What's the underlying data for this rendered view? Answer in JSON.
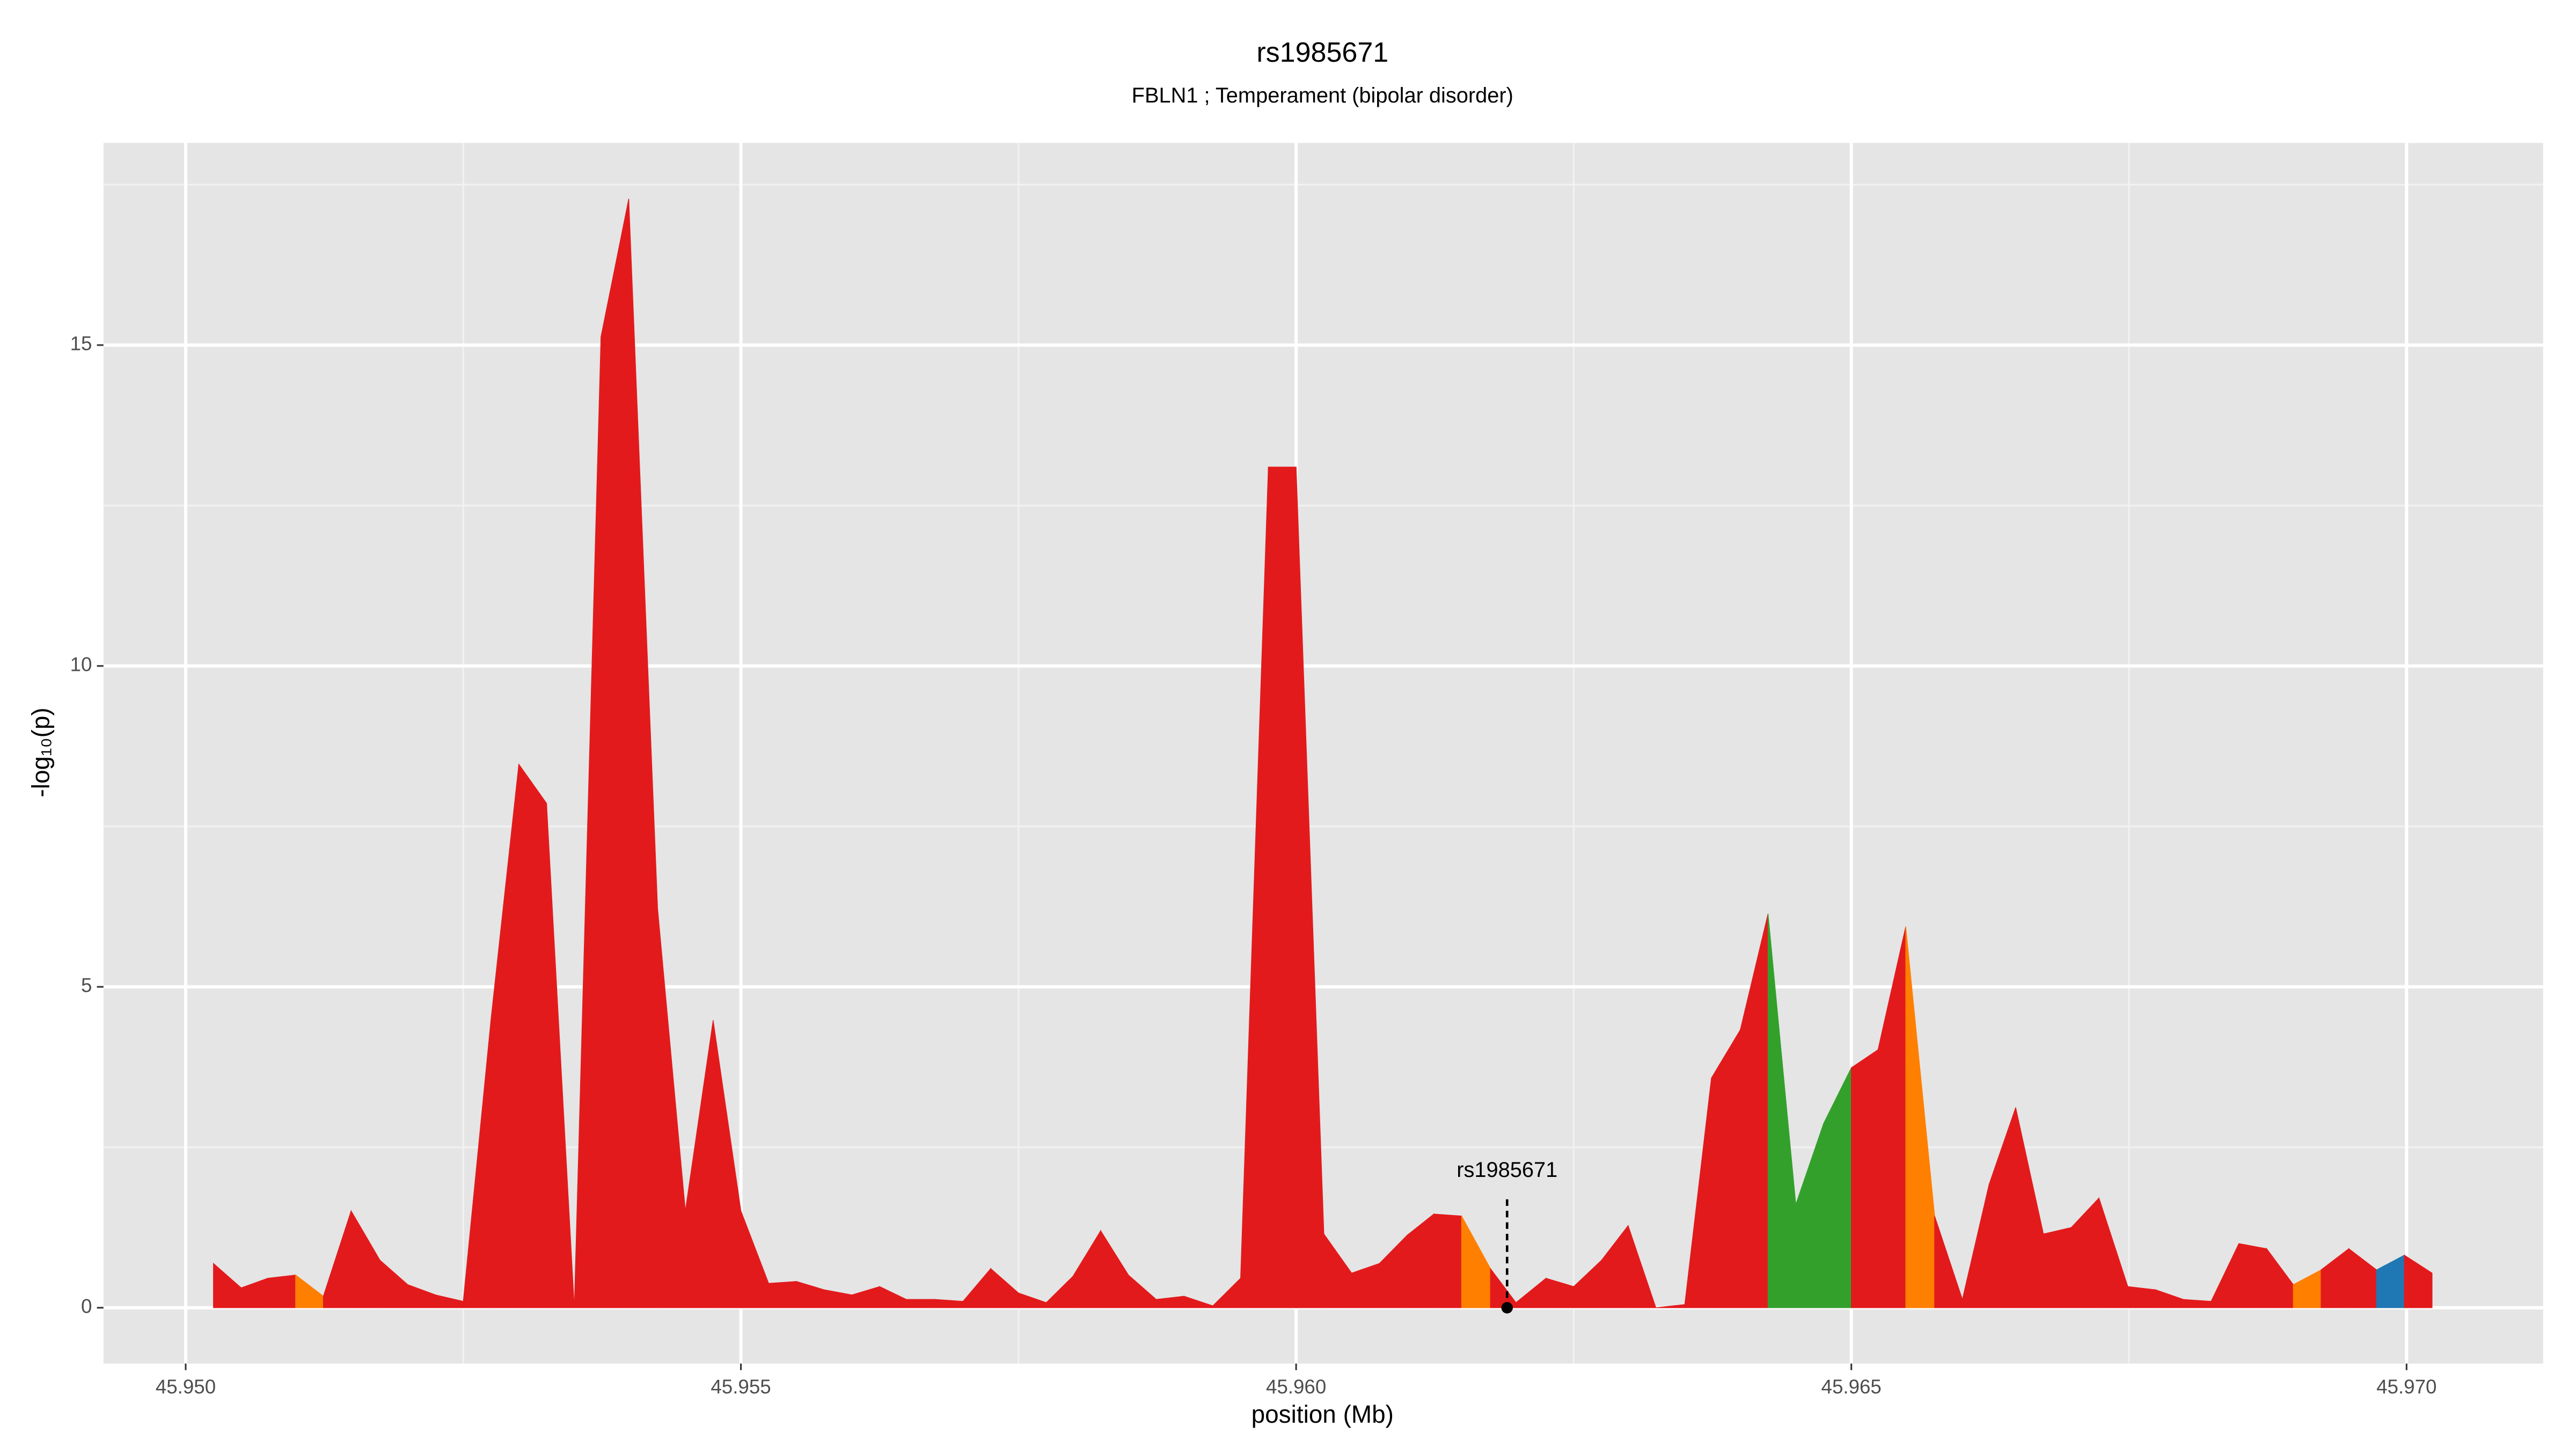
{
  "chart_data": {
    "type": "area",
    "title": "rs1985671",
    "subtitle": "FBLN1 ; Temperament (bipolar disorder)",
    "x_label": "position (Mb)",
    "y_label": "-log₁₀(p)",
    "x": [
      45.95025,
      45.9505,
      45.95074,
      45.95099,
      45.95124,
      45.95149,
      45.95175,
      45.952,
      45.95225,
      45.9525,
      45.95275,
      45.953,
      45.95325,
      45.9535,
      45.95374,
      45.95399,
      45.95425,
      45.9545,
      45.95475,
      45.955,
      45.95525,
      45.9555,
      45.95575,
      45.956,
      45.95625,
      45.95649,
      45.95675,
      45.957,
      45.95725,
      45.9575,
      45.95775,
      45.95799,
      45.95824,
      45.95849,
      45.95874,
      45.95899,
      45.95925,
      45.9595,
      45.95975,
      45.96,
      45.96025,
      45.9605,
      45.96075,
      45.961,
      45.96124,
      45.96149,
      45.96175,
      45.96198,
      45.96225,
      45.9625,
      45.96275,
      45.96299,
      45.96324,
      45.9635,
      45.96374,
      45.964,
      45.96425,
      45.9645,
      45.96475,
      45.965,
      45.96524,
      45.96549,
      45.96575,
      45.966,
      45.96624,
      45.96648,
      45.96673,
      45.96698,
      45.96723,
      45.96749,
      45.96774,
      45.96799,
      45.96824,
      45.96849,
      45.96874,
      45.96898,
      45.96923,
      45.96948,
      45.96973,
      45.96998,
      45.97023
    ],
    "values": [
      0.69,
      0.31,
      0.46,
      0.51,
      0.18,
      1.51,
      0.74,
      0.36,
      0.2,
      0.1,
      4.5,
      8.47,
      7.86,
      0,
      15.13,
      17.28,
      6.22,
      1.51,
      4.48,
      1.51,
      0.38,
      0.41,
      0.28,
      0.2,
      0.33,
      0.13,
      0.13,
      0.1,
      0.61,
      0.23,
      0.08,
      0.49,
      1.2,
      0.51,
      0.13,
      0.18,
      0.03,
      0.46,
      13.1,
      13.1,
      1.15,
      0.54,
      0.69,
      1.13,
      1.46,
      1.43,
      0.61,
      0.08,
      0.46,
      0.33,
      0.74,
      1.28,
      0,
      0.05,
      3.58,
      4.33,
      6.14,
      1.61,
      2.87,
      3.74,
      4.02,
      5.94,
      1.43,
      0.13,
      1.92,
      3.12,
      1.15,
      1.25,
      1.71,
      0.33,
      0.28,
      0.13,
      0.1,
      1.0,
      0.92,
      0.36,
      0.59,
      0.92,
      0.59,
      0.82,
      0.54
    ],
    "point_colors": [
      "#e31a1c",
      "#e31a1c",
      "#e31a1c",
      "#ff7f00",
      "#e31a1c",
      "#e31a1c",
      "#e31a1c",
      "#e31a1c",
      "#e31a1c",
      "#e31a1c",
      "#e31a1c",
      "#e31a1c",
      "#e31a1c",
      "#e31a1c",
      "#e31a1c",
      "#e31a1c",
      "#e31a1c",
      "#e31a1c",
      "#e31a1c",
      "#e31a1c",
      "#e31a1c",
      "#e31a1c",
      "#e31a1c",
      "#e31a1c",
      "#e31a1c",
      "#e31a1c",
      "#e31a1c",
      "#e31a1c",
      "#e31a1c",
      "#e31a1c",
      "#e31a1c",
      "#e31a1c",
      "#e31a1c",
      "#e31a1c",
      "#e31a1c",
      "#e31a1c",
      "#e31a1c",
      "#e31a1c",
      "#e31a1c",
      "#e31a1c",
      "#e31a1c",
      "#e31a1c",
      "#e31a1c",
      "#e31a1c",
      "#e31a1c",
      "#ff7f00",
      "#e31a1c",
      "#e31a1c",
      "#e31a1c",
      "#e31a1c",
      "#e31a1c",
      "#e31a1c",
      "#e31a1c",
      "#e31a1c",
      "#e31a1c",
      "#e31a1c",
      "#33a02c",
      "#33a02c",
      "#33a02c",
      "#e31a1c",
      "#e31a1c",
      "#ff7f00",
      "#e31a1c",
      "#e31a1c",
      "#e31a1c",
      "#e31a1c",
      "#e31a1c",
      "#e31a1c",
      "#e31a1c",
      "#e31a1c",
      "#e31a1c",
      "#e31a1c",
      "#e31a1c",
      "#e31a1c",
      "#e31a1c",
      "#ff7f00",
      "#e31a1c",
      "#e31a1c",
      "#1f78b4",
      "#e31a1c",
      "#e31a1c"
    ],
    "annotation": {
      "label": "rs1985671",
      "x": 45.9619,
      "y": 0
    },
    "xlim": [
      45.94926,
      45.97123
    ],
    "ylim": [
      -0.87,
      18.15
    ],
    "xticks": [
      {
        "value": 45.95,
        "label": "45.950"
      },
      45.955,
      {
        "value": 45.96,
        "label": "45.960"
      },
      45.965,
      {
        "value": 45.97,
        "label": "45.970"
      }
    ],
    "yticks": [
      0,
      5,
      10,
      15
    ],
    "xminor": [
      45.9525,
      45.9575,
      45.9625,
      45.9675
    ],
    "yminor": [
      2.5,
      7.5,
      12.5,
      17.5
    ],
    "grid": true
  }
}
